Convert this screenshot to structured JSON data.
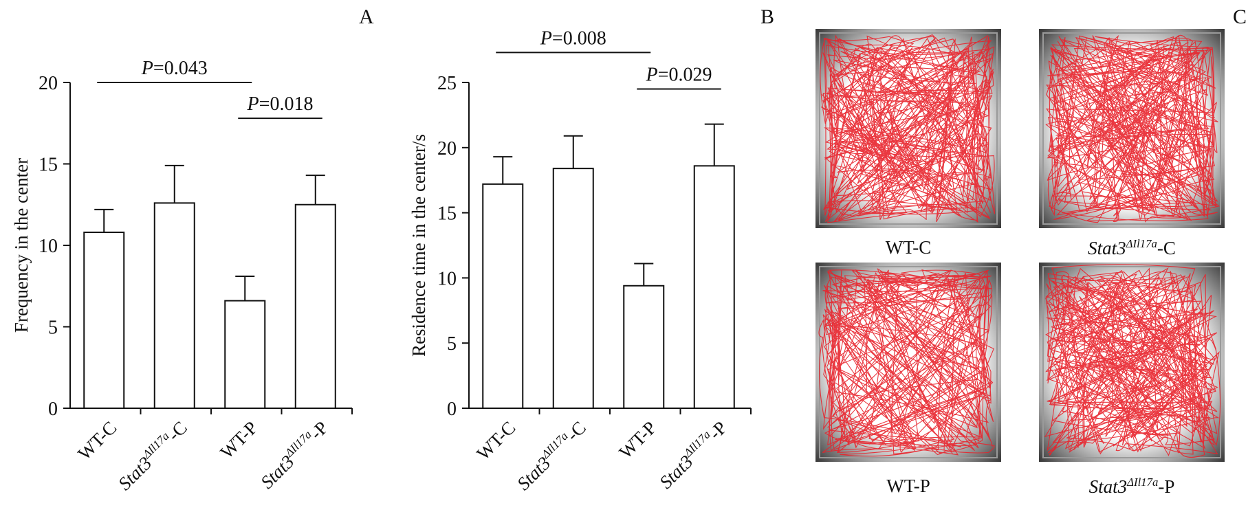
{
  "panel_labels": {
    "a": "A",
    "b": "B",
    "c": "C"
  },
  "chart_data": [
    {
      "type": "bar",
      "ylabel": "Frequency in the center",
      "ylim": [
        0,
        20
      ],
      "yticks": [
        0,
        5,
        10,
        15,
        20
      ],
      "categories": [
        "WT-C",
        "Stat3ΔIl17a-C",
        "WT-P",
        "Stat3ΔIl17a-P"
      ],
      "category_parts": [
        {
          "base": "WT-C",
          "sup": "",
          "suffix": ""
        },
        {
          "base": "Stat3",
          "sup": "ΔIl17a",
          "suffix": "-C"
        },
        {
          "base": "WT-P",
          "sup": "",
          "suffix": ""
        },
        {
          "base": "Stat3",
          "sup": "ΔIl17a",
          "suffix": "-P"
        }
      ],
      "values": [
        10.8,
        12.6,
        6.6,
        12.5
      ],
      "errors": [
        1.4,
        2.3,
        1.5,
        1.8
      ],
      "significance": [
        {
          "from": 0,
          "to": 2,
          "level": 20.0,
          "label_p": "P",
          "label_value": "=0.043"
        },
        {
          "from": 2,
          "to": 3,
          "level": 17.8,
          "label_p": "P",
          "label_value": "=0.018"
        }
      ]
    },
    {
      "type": "bar",
      "ylabel": "Residence time in the center/s",
      "ylim": [
        0,
        25
      ],
      "yticks": [
        0,
        5,
        10,
        15,
        20,
        25
      ],
      "categories": [
        "WT-C",
        "Stat3ΔIl17a-C",
        "WT-P",
        "Stat3ΔIl17a-P"
      ],
      "category_parts": [
        {
          "base": "WT-C",
          "sup": "",
          "suffix": ""
        },
        {
          "base": "Stat3",
          "sup": "ΔIl17a",
          "suffix": "-C"
        },
        {
          "base": "WT-P",
          "sup": "",
          "suffix": ""
        },
        {
          "base": "Stat3",
          "sup": "ΔIl17a",
          "suffix": "-P"
        }
      ],
      "values": [
        17.2,
        18.4,
        9.4,
        18.6
      ],
      "errors": [
        2.1,
        2.5,
        1.7,
        3.2
      ],
      "significance": [
        {
          "from": 0,
          "to": 2,
          "level": 27.3,
          "label_p": "P",
          "label_value": "=0.008"
        },
        {
          "from": 2,
          "to": 3,
          "level": 24.5,
          "label_p": "P",
          "label_value": "=0.029"
        }
      ]
    }
  ],
  "track_panels": [
    {
      "caption_base": "WT-C",
      "caption_sup": "",
      "caption_suffix": "",
      "italic": false,
      "seed": 11,
      "pattern": "dense"
    },
    {
      "caption_base": "Stat3",
      "caption_sup": "ΔIl17a",
      "caption_suffix": "-C",
      "italic": true,
      "seed": 23,
      "pattern": "dense"
    },
    {
      "caption_base": "WT-P",
      "caption_sup": "",
      "caption_suffix": "",
      "italic": false,
      "seed": 37,
      "pattern": "edge"
    },
    {
      "caption_base": "Stat3",
      "caption_sup": "ΔIl17a",
      "caption_suffix": "-P",
      "italic": true,
      "seed": 53,
      "pattern": "dense"
    }
  ],
  "colors": {
    "axis": "#111111",
    "bar_fill": "#ffffff",
    "track": "#e8222b",
    "arena_dark": "#3a3a3a",
    "arena_light": "#ffffff"
  }
}
